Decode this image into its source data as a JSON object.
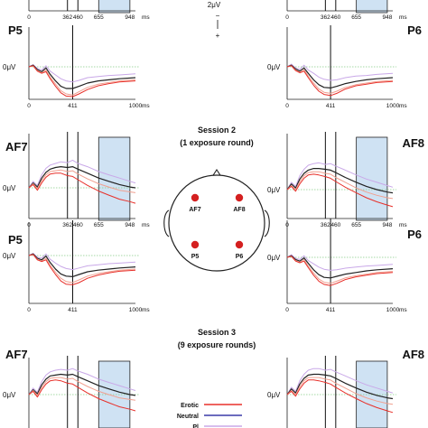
{
  "scale_bar": {
    "amplitude": "2μV",
    "minus": "−",
    "plus": "+"
  },
  "sessions": [
    {
      "title": "Session 2",
      "subtitle": "(1 exposure round)"
    },
    {
      "title": "Session 3",
      "subtitle": "(9 exposure rounds)"
    }
  ],
  "legend": [
    {
      "label": "Erotic",
      "color": "#e8302a"
    },
    {
      "label": "Neutral",
      "color": "#3a3aa8"
    },
    {
      "label": "Pl",
      "color": "#c9a8e8"
    }
  ],
  "head_map": {
    "electrodes": [
      "AF7",
      "AF8",
      "P5",
      "P6"
    ],
    "electrode_color": "#d42020"
  },
  "colors": {
    "erotic": "#e8302a",
    "neutral": "#3a3aa8",
    "third": "#c9a8e8",
    "salmon": "#f0a090",
    "black": "#222222",
    "window": "#cfe2f3",
    "baseline": "#88cc88"
  },
  "chart_data": [
    {
      "type": "line",
      "title": "P5",
      "ylabel": "0μV",
      "x_ticks": [
        "0",
        "411",
        "1000"
      ],
      "x_unit": "ms",
      "markers_ms": [
        411
      ],
      "window_ms": null,
      "xlim": [
        0,
        1000
      ],
      "ylim": [
        -6,
        3
      ],
      "x": [
        0,
        40,
        80,
        120,
        160,
        200,
        250,
        300,
        350,
        411,
        470,
        550,
        650,
        750,
        850,
        1000
      ],
      "series": [
        {
          "values": [
            0,
            0.4,
            -0.3,
            -0.6,
            0.2,
            -0.8,
            -1.5,
            -2.2,
            -2.6,
            -2.8,
            -2.5,
            -2.0,
            -1.8,
            -1.6,
            -1.5,
            -1.3
          ]
        },
        {
          "values": [
            0,
            0.3,
            -0.5,
            -0.9,
            -0.2,
            -1.4,
            -2.6,
            -3.6,
            -4.0,
            -4.0,
            -3.6,
            -3.0,
            -2.6,
            -2.4,
            -2.2,
            -2.0
          ]
        },
        {
          "values": [
            0,
            0.2,
            -0.7,
            -1.1,
            -0.6,
            -1.9,
            -3.2,
            -4.4,
            -5.0,
            -5.2,
            -4.6,
            -3.8,
            -3.2,
            -2.9,
            -2.6,
            -2.4
          ]
        },
        {
          "values": [
            0,
            0.2,
            -0.8,
            -1.2,
            -0.9,
            -2.2,
            -3.6,
            -4.8,
            -5.4,
            -5.5,
            -5.0,
            -4.2,
            -3.5,
            -3.1,
            -2.8,
            -2.6
          ]
        }
      ]
    },
    {
      "type": "line",
      "title": "P6",
      "ylabel": "0μV",
      "x_ticks": [
        "0",
        "411",
        "1000"
      ],
      "x_unit": "ms",
      "markers_ms": [
        411
      ],
      "window_ms": null,
      "xlim": [
        0,
        1000
      ],
      "ylim": [
        -6,
        3
      ],
      "x": [
        0,
        40,
        80,
        120,
        160,
        200,
        250,
        300,
        350,
        411,
        470,
        550,
        650,
        750,
        850,
        1000
      ],
      "series": [
        {
          "values": [
            0,
            0.5,
            -0.2,
            -0.5,
            0.3,
            -0.6,
            -1.2,
            -1.9,
            -2.3,
            -2.5,
            -2.4,
            -2.0,
            -1.7,
            -1.6,
            -1.4,
            -1.2
          ]
        },
        {
          "values": [
            0,
            0.3,
            -0.4,
            -0.8,
            -0.2,
            -1.2,
            -2.4,
            -3.3,
            -3.8,
            -3.9,
            -3.6,
            -3.1,
            -2.7,
            -2.4,
            -2.2,
            -2.0
          ]
        },
        {
          "values": [
            0,
            0.2,
            -0.6,
            -1.0,
            -0.5,
            -1.7,
            -3.0,
            -4.1,
            -4.7,
            -4.9,
            -4.5,
            -3.8,
            -3.3,
            -3.0,
            -2.7,
            -2.5
          ]
        },
        {
          "values": [
            0,
            0.2,
            -0.7,
            -1.1,
            -0.8,
            -2.0,
            -3.4,
            -4.5,
            -5.1,
            -5.3,
            -4.9,
            -4.1,
            -3.5,
            -3.2,
            -2.9,
            -2.7
          ]
        }
      ]
    },
    {
      "type": "line",
      "title": "AF7",
      "ylabel": "0μV",
      "x_ticks": [
        "0",
        "362",
        "460",
        "655",
        "948"
      ],
      "x_unit": "ms",
      "markers_ms": [
        362,
        460
      ],
      "window_ms": [
        655,
        948
      ],
      "xlim": [
        0,
        1000
      ],
      "ylim": [
        -3,
        4
      ],
      "x": [
        0,
        40,
        80,
        120,
        160,
        200,
        250,
        300,
        362,
        410,
        460,
        550,
        655,
        750,
        850,
        948,
        1000
      ],
      "series": [
        {
          "values": [
            0,
            0.8,
            0.3,
            1.6,
            2.4,
            2.8,
            3.0,
            3.2,
            3.1,
            3.4,
            3.0,
            2.6,
            2.0,
            1.6,
            1.2,
            0.8,
            0.6
          ]
        },
        {
          "values": [
            0,
            0.6,
            0.1,
            1.2,
            1.9,
            2.3,
            2.5,
            2.6,
            2.5,
            2.6,
            2.3,
            1.8,
            1.2,
            0.8,
            0.4,
            0.1,
            0.0
          ]
        },
        {
          "values": [
            0,
            0.5,
            -0.1,
            0.9,
            1.6,
            2.0,
            2.1,
            2.2,
            2.0,
            2.1,
            1.7,
            1.1,
            0.5,
            0.1,
            -0.3,
            -0.5,
            -0.6
          ]
        },
        {
          "values": [
            0,
            0.4,
            -0.3,
            0.6,
            1.3,
            1.7,
            1.8,
            1.8,
            1.5,
            1.4,
            1.0,
            0.3,
            -0.4,
            -0.9,
            -1.4,
            -1.7,
            -1.9
          ]
        }
      ]
    },
    {
      "type": "line",
      "title": "AF8",
      "ylabel": "0μV",
      "x_ticks": [
        "0",
        "362",
        "460",
        "655",
        "948"
      ],
      "x_unit": "ms",
      "markers_ms": [
        362,
        460
      ],
      "window_ms": [
        655,
        948
      ],
      "xlim": [
        0,
        1000
      ],
      "ylim": [
        -3,
        4
      ],
      "x": [
        0,
        40,
        80,
        120,
        160,
        200,
        250,
        300,
        362,
        410,
        460,
        550,
        655,
        750,
        850,
        948,
        1000
      ],
      "series": [
        {
          "values": [
            0,
            0.9,
            0.4,
            1.7,
            2.5,
            3.0,
            3.2,
            3.3,
            3.1,
            3.2,
            2.9,
            2.4,
            1.8,
            1.3,
            0.9,
            0.5,
            0.3
          ]
        },
        {
          "values": [
            0,
            0.7,
            0.2,
            1.3,
            2.0,
            2.4,
            2.6,
            2.6,
            2.5,
            2.4,
            2.1,
            1.5,
            0.9,
            0.4,
            0.0,
            -0.3,
            -0.4
          ]
        },
        {
          "values": [
            0,
            0.5,
            0.0,
            1.0,
            1.7,
            2.1,
            2.2,
            2.2,
            2.0,
            1.9,
            1.5,
            0.9,
            0.2,
            -0.3,
            -0.7,
            -1.0,
            -1.1
          ]
        },
        {
          "values": [
            0,
            0.4,
            -0.2,
            0.7,
            1.4,
            1.8,
            1.9,
            1.8,
            1.6,
            1.4,
            1.0,
            0.3,
            -0.4,
            -1.0,
            -1.5,
            -1.9,
            -2.1
          ]
        }
      ]
    },
    {
      "type": "line",
      "title": "P5",
      "ylabel": "0μV",
      "x_ticks": [
        "0",
        "411",
        "1000"
      ],
      "x_unit": "ms",
      "markers_ms": [
        411
      ],
      "window_ms": null,
      "xlim": [
        0,
        1000
      ],
      "ylim": [
        -6,
        3
      ],
      "x": [
        0,
        40,
        80,
        120,
        160,
        200,
        250,
        300,
        350,
        411,
        470,
        550,
        650,
        750,
        850,
        1000
      ],
      "series": [
        {
          "values": [
            0,
            0.4,
            -0.3,
            -0.5,
            0.3,
            -0.7,
            -1.4,
            -2.0,
            -2.4,
            -2.6,
            -2.3,
            -1.9,
            -1.7,
            -1.5,
            -1.4,
            -1.2
          ]
        },
        {
          "values": [
            0,
            0.3,
            -0.5,
            -0.8,
            -0.1,
            -1.3,
            -2.5,
            -3.4,
            -3.8,
            -3.9,
            -3.5,
            -3.0,
            -2.7,
            -2.5,
            -2.3,
            -2.1
          ]
        },
        {
          "values": [
            0,
            0.2,
            -0.7,
            -1.0,
            -0.5,
            -1.8,
            -3.1,
            -4.2,
            -4.8,
            -5.0,
            -4.5,
            -3.8,
            -3.3,
            -3.0,
            -2.7,
            -2.5
          ]
        },
        {
          "values": [
            0,
            0.2,
            -0.8,
            -1.1,
            -0.8,
            -2.1,
            -3.5,
            -4.7,
            -5.3,
            -5.4,
            -5.0,
            -4.2,
            -3.6,
            -3.2,
            -2.9,
            -2.7
          ]
        }
      ]
    },
    {
      "type": "line",
      "title": "P6",
      "ylabel": "0μV",
      "x_ticks": [
        "0",
        "411",
        "1000"
      ],
      "x_unit": "ms",
      "markers_ms": [
        411
      ],
      "window_ms": null,
      "xlim": [
        0,
        1000
      ],
      "ylim": [
        -6,
        3
      ],
      "x": [
        0,
        40,
        80,
        120,
        160,
        200,
        250,
        300,
        350,
        411,
        470,
        550,
        650,
        750,
        850,
        1000
      ],
      "series": [
        {
          "values": [
            0,
            0.5,
            -0.2,
            -0.4,
            0.3,
            -0.6,
            -1.2,
            -1.8,
            -2.2,
            -2.4,
            -2.3,
            -2.0,
            -1.8,
            -1.6,
            -1.5,
            -1.3
          ]
        },
        {
          "values": [
            0,
            0.3,
            -0.4,
            -0.7,
            -0.1,
            -1.1,
            -2.3,
            -3.2,
            -3.7,
            -3.8,
            -3.5,
            -3.1,
            -2.8,
            -2.5,
            -2.3,
            -2.1
          ]
        },
        {
          "values": [
            0,
            0.2,
            -0.6,
            -0.9,
            -0.4,
            -1.6,
            -2.9,
            -4.0,
            -4.6,
            -4.8,
            -4.4,
            -3.8,
            -3.4,
            -3.1,
            -2.8,
            -2.6
          ]
        },
        {
          "values": [
            0,
            0.2,
            -0.7,
            -1.0,
            -0.7,
            -1.9,
            -3.3,
            -4.4,
            -5.0,
            -5.2,
            -4.8,
            -4.1,
            -3.6,
            -3.3,
            -3.0,
            -2.8
          ]
        }
      ]
    },
    {
      "type": "line",
      "title": "AF7",
      "ylabel": "0μV",
      "x_ticks": [],
      "x_unit": "",
      "markers_ms": [
        362,
        460
      ],
      "window_ms": [
        655,
        948
      ],
      "xlim": [
        0,
        1000
      ],
      "ylim": [
        -3,
        4
      ],
      "x": [
        0,
        40,
        80,
        120,
        160,
        200,
        250,
        300,
        362,
        410,
        460,
        550,
        655,
        750,
        850,
        948,
        1000
      ],
      "series": [
        {
          "values": [
            0,
            0.8,
            0.3,
            1.6,
            2.4,
            2.8,
            3.0,
            3.1,
            3.0,
            3.2,
            2.9,
            2.5,
            1.9,
            1.5,
            1.1,
            0.7,
            0.5
          ]
        },
        {
          "values": [
            0,
            0.6,
            0.1,
            1.2,
            1.9,
            2.3,
            2.4,
            2.5,
            2.4,
            2.5,
            2.2,
            1.7,
            1.1,
            0.7,
            0.3,
            0.0,
            -0.1
          ]
        },
        {
          "values": [
            0,
            0.5,
            -0.1,
            0.9,
            1.6,
            2.0,
            2.1,
            2.1,
            1.9,
            2.0,
            1.6,
            1.0,
            0.4,
            0.0,
            -0.4,
            -0.6,
            -0.7
          ]
        },
        {
          "values": [
            0,
            0.4,
            -0.3,
            0.6,
            1.3,
            1.7,
            1.8,
            1.7,
            1.4,
            1.3,
            0.9,
            0.2,
            -0.5,
            -1.0,
            -1.5,
            -1.8,
            -2.0
          ]
        }
      ]
    },
    {
      "type": "line",
      "title": "AF8",
      "ylabel": "0μV",
      "x_ticks": [],
      "x_unit": "",
      "markers_ms": [
        362,
        460
      ],
      "window_ms": [
        655,
        948
      ],
      "xlim": [
        0,
        1000
      ],
      "ylim": [
        -3,
        4
      ],
      "x": [
        0,
        40,
        80,
        120,
        160,
        200,
        250,
        300,
        362,
        410,
        460,
        550,
        655,
        750,
        850,
        948,
        1000
      ],
      "series": [
        {
          "values": [
            0,
            0.9,
            0.4,
            1.7,
            2.5,
            3.0,
            3.2,
            3.2,
            3.0,
            3.1,
            2.8,
            2.3,
            1.7,
            1.2,
            0.8,
            0.4,
            0.2
          ]
        },
        {
          "values": [
            0,
            0.7,
            0.2,
            1.3,
            2.0,
            2.4,
            2.5,
            2.5,
            2.4,
            2.3,
            2.0,
            1.4,
            0.8,
            0.3,
            -0.1,
            -0.4,
            -0.5
          ]
        },
        {
          "values": [
            0,
            0.5,
            0.0,
            1.0,
            1.7,
            2.1,
            2.1,
            2.1,
            1.9,
            1.8,
            1.4,
            0.8,
            0.1,
            -0.4,
            -0.8,
            -1.1,
            -1.2
          ]
        },
        {
          "values": [
            0,
            0.4,
            -0.2,
            0.7,
            1.4,
            1.8,
            1.8,
            1.7,
            1.5,
            1.3,
            0.9,
            0.2,
            -0.5,
            -1.1,
            -1.6,
            -2.0,
            -2.2
          ]
        }
      ]
    },
    {
      "type": "line",
      "title": "",
      "ylabel": "",
      "x_ticks": [
        "0",
        "362",
        "460",
        "655",
        "948"
      ],
      "x_unit": "ms",
      "markers_ms": [
        362,
        460
      ],
      "window_ms": [
        655,
        948
      ],
      "xlim": [
        0,
        1000
      ],
      "ylim": [
        -3,
        4
      ],
      "x": [
        0,
        200,
        400,
        600,
        800,
        1000
      ],
      "series": []
    },
    {
      "type": "line",
      "title": "",
      "ylabel": "",
      "x_ticks": [
        "0",
        "362",
        "460",
        "655",
        "948"
      ],
      "x_unit": "ms",
      "markers_ms": [
        362,
        460
      ],
      "window_ms": [
        655,
        948
      ],
      "xlim": [
        0,
        1000
      ],
      "ylim": [
        -3,
        4
      ],
      "x": [
        0,
        200,
        400,
        600,
        800,
        1000
      ],
      "series": [
        {
          "values": [
            1.2,
            1.8,
            2.2,
            1.6,
            0.9,
            0.5
          ]
        }
      ]
    }
  ]
}
